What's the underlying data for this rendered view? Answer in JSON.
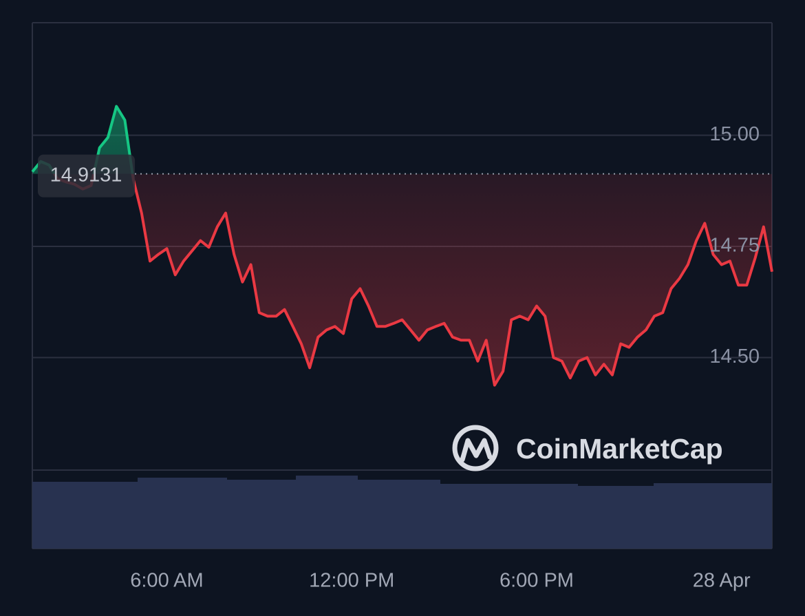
{
  "chart_data": {
    "type": "line",
    "categories": [
      null,
      null,
      null,
      null,
      null,
      null,
      null,
      null,
      null,
      null,
      null,
      null,
      null,
      null,
      null,
      null,
      "6:00 AM",
      null,
      null,
      null,
      null,
      null,
      null,
      null,
      null,
      null,
      null,
      null,
      null,
      null,
      null,
      null,
      null,
      null,
      null,
      null,
      null,
      null,
      "12:00 PM",
      null,
      null,
      null,
      null,
      null,
      null,
      null,
      null,
      null,
      null,
      null,
      null,
      null,
      null,
      null,
      null,
      null,
      null,
      null,
      null,
      null,
      "6:00 PM",
      null,
      null,
      null,
      null,
      null,
      null,
      null,
      null,
      null,
      null,
      null,
      null,
      null,
      null,
      null,
      null,
      null,
      null,
      null,
      null,
      null,
      "28 Apr",
      null,
      null,
      null,
      null,
      null,
      null
    ],
    "values": [
      14.918,
      14.941,
      14.933,
      14.902,
      14.895,
      14.89,
      14.879,
      14.887,
      14.972,
      14.995,
      15.065,
      15.034,
      14.902,
      14.825,
      14.717,
      14.732,
      14.745,
      14.686,
      14.717,
      14.74,
      14.763,
      14.748,
      14.794,
      14.825,
      14.732,
      14.67,
      14.709,
      14.601,
      14.593,
      14.593,
      14.608,
      14.57,
      14.531,
      14.477,
      14.546,
      14.562,
      14.57,
      14.554,
      14.632,
      14.655,
      14.616,
      14.57,
      14.57,
      14.577,
      14.585,
      14.562,
      14.539,
      14.562,
      14.57,
      14.577,
      14.546,
      14.539,
      14.539,
      14.492,
      14.539,
      14.438,
      14.469,
      14.585,
      14.593,
      14.585,
      14.616,
      14.593,
      14.5,
      14.492,
      14.454,
      14.492,
      14.5,
      14.461,
      14.485,
      14.461,
      14.531,
      14.523,
      14.546,
      14.562,
      14.593,
      14.601,
      14.655,
      14.678,
      14.709,
      14.763,
      14.802,
      14.732,
      14.709,
      14.717,
      14.663,
      14.663,
      14.724,
      14.794,
      14.693
    ],
    "reference": {
      "value": 14.9131,
      "label": "14.9131"
    },
    "up_color": "#16c784",
    "down_color": "#ea3943",
    "ylim": [
      14.25,
      15.25
    ],
    "yticks": [
      {
        "value": 14.5,
        "label": "14.50"
      },
      {
        "value": 14.75,
        "label": "14.75"
      },
      {
        "value": 15,
        "label": "15.00"
      }
    ],
    "grid": true,
    "watermark": "CoinMarketCap"
  }
}
